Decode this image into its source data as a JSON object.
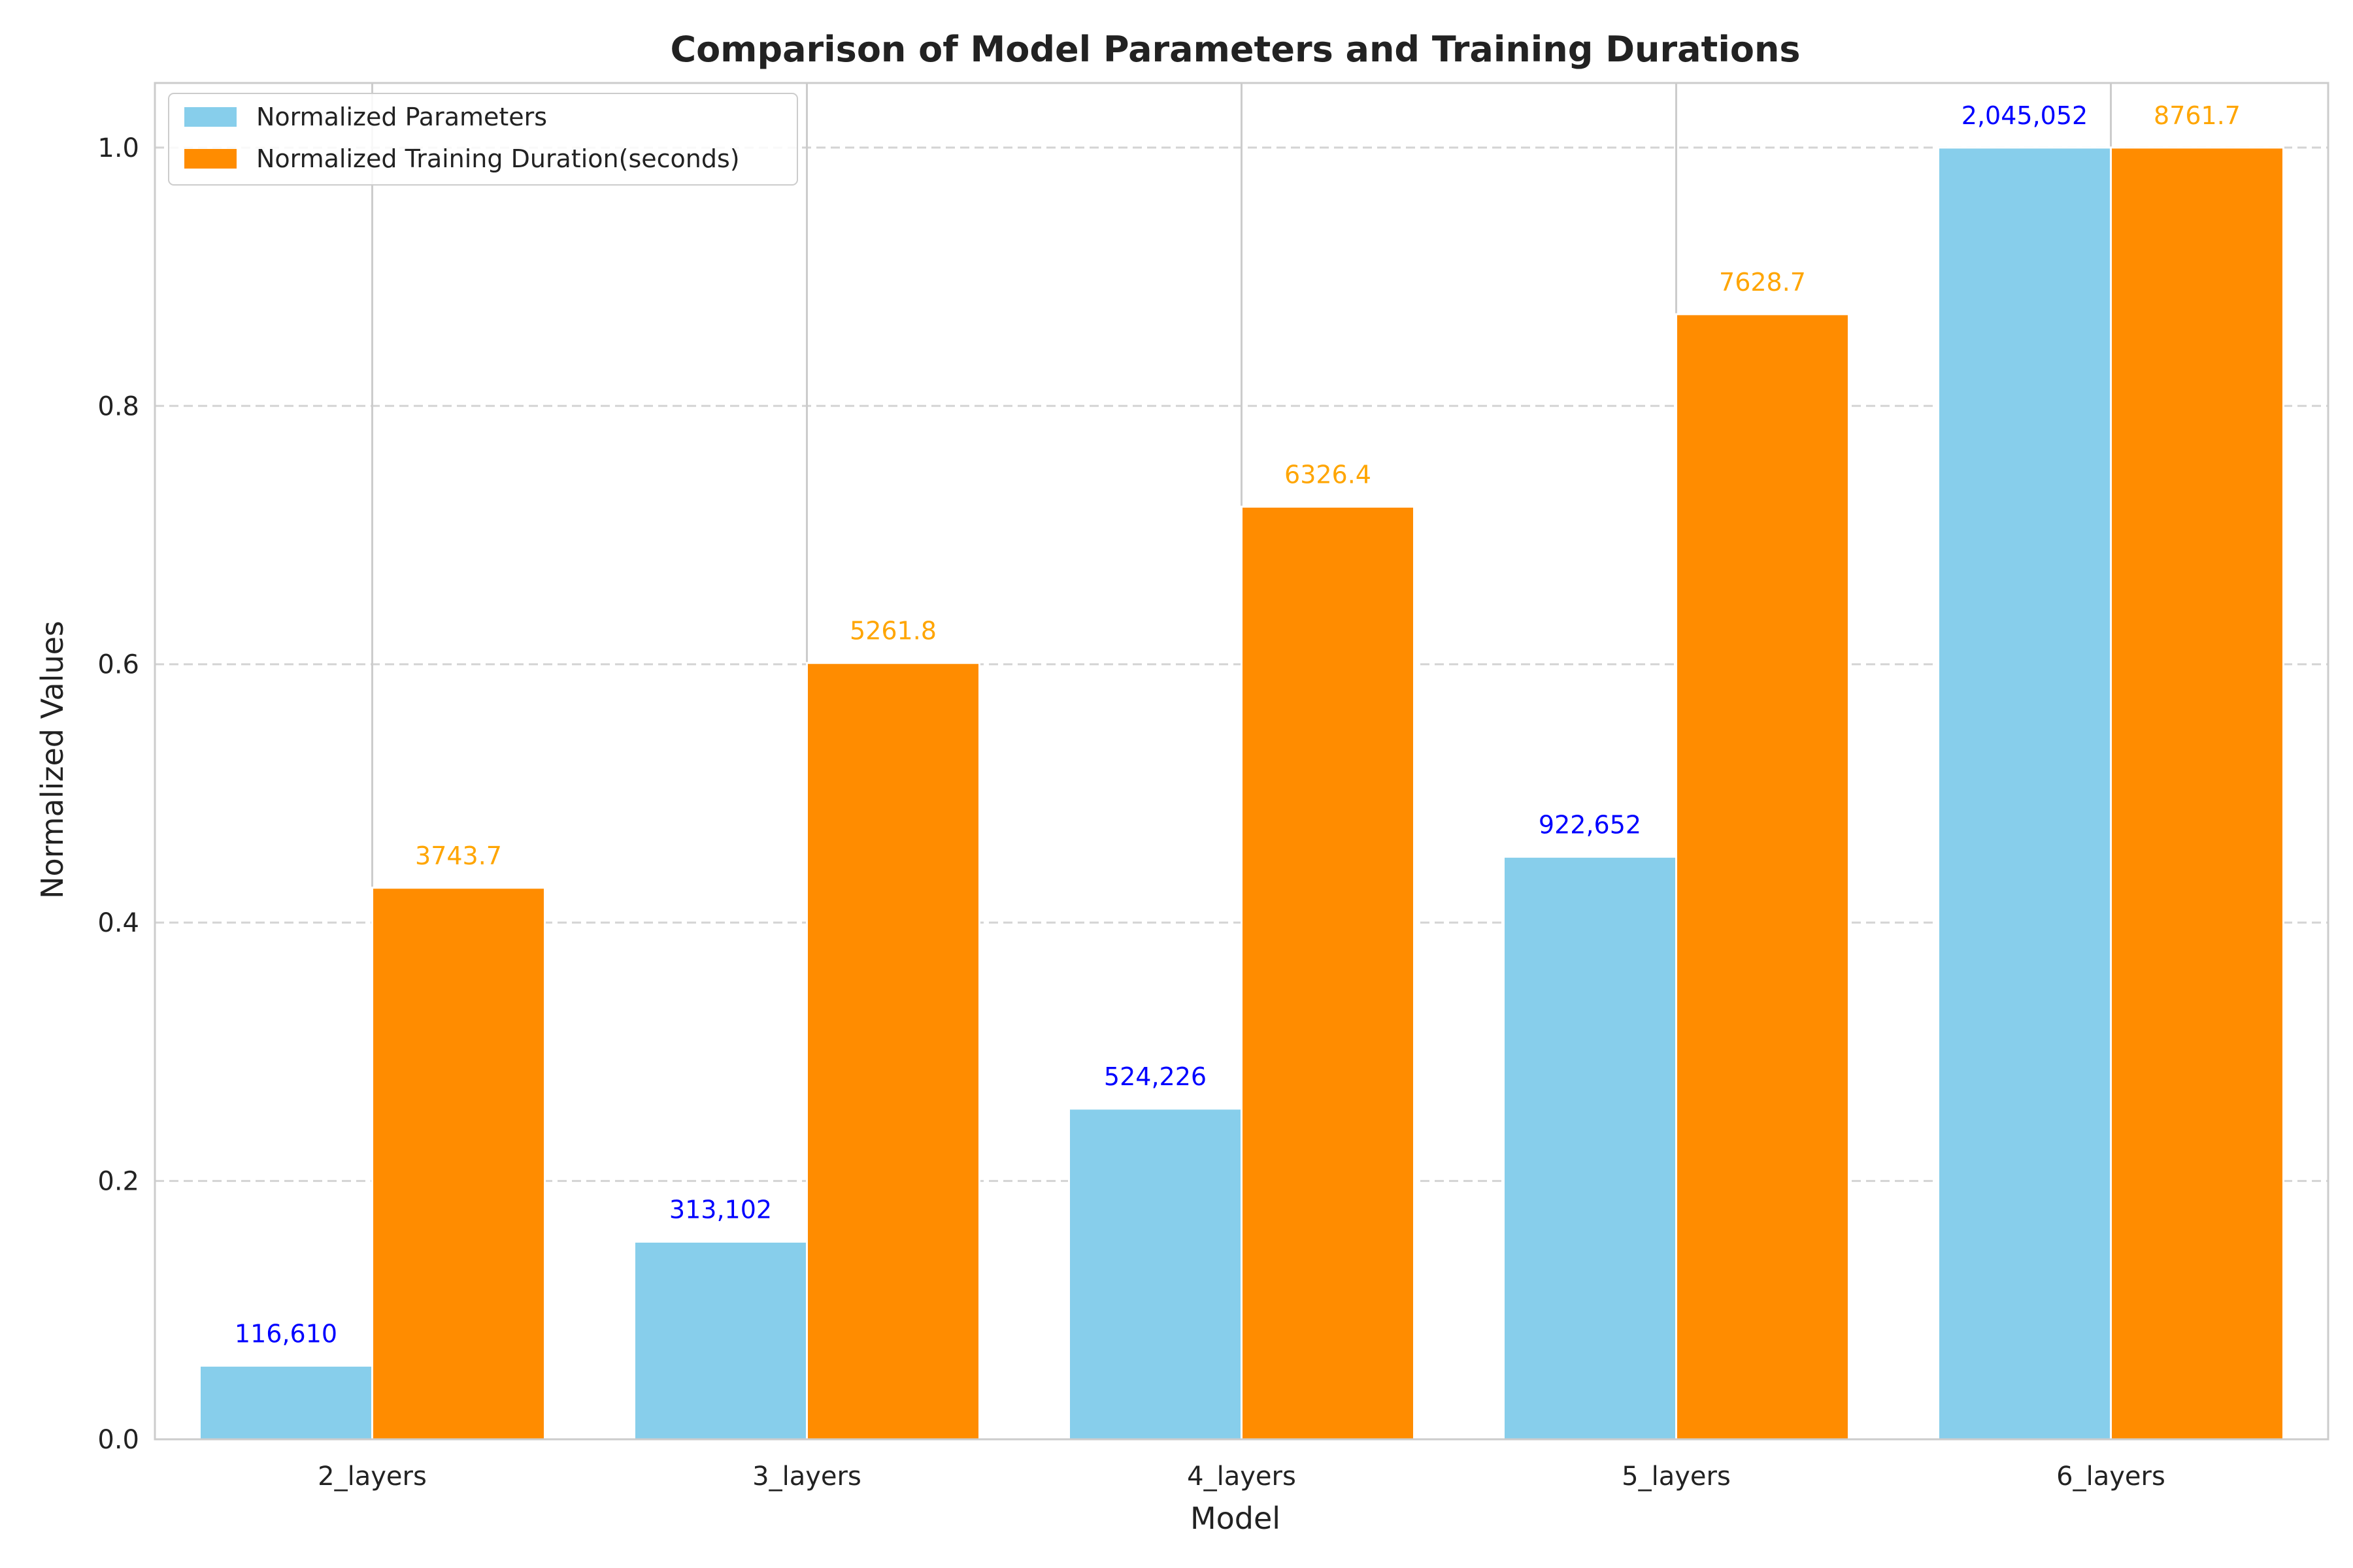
{
  "chart_data": {
    "type": "bar",
    "title": "Comparison of Model Parameters and Training Durations",
    "xlabel": "Model",
    "ylabel": "Normalized Values",
    "categories": [
      "2_layers",
      "3_layers",
      "4_layers",
      "5_layers",
      "6_layers"
    ],
    "ylim": [
      0,
      1.05
    ],
    "yticks": [
      "0.0",
      "0.2",
      "0.4",
      "0.6",
      "0.8",
      "1.0"
    ],
    "grid": true,
    "legend_position": "top-left",
    "series": [
      {
        "name": "Normalized Parameters",
        "color": "#87CEEB",
        "label_color": "#0000FF",
        "values": [
          0.057,
          0.153,
          0.256,
          0.451,
          1.0
        ],
        "labels": [
          "116,610",
          "313,102",
          "524,226",
          "922,652",
          "2,045,052"
        ]
      },
      {
        "name": "Normalized Training Duration(seconds)",
        "color": "#FF8C00",
        "label_color": "#FFA500",
        "values": [
          0.427,
          0.601,
          0.722,
          0.871,
          1.0
        ],
        "labels": [
          "3743.7",
          "5261.8",
          "6326.4",
          "7628.7",
          "8761.7"
        ]
      }
    ]
  }
}
